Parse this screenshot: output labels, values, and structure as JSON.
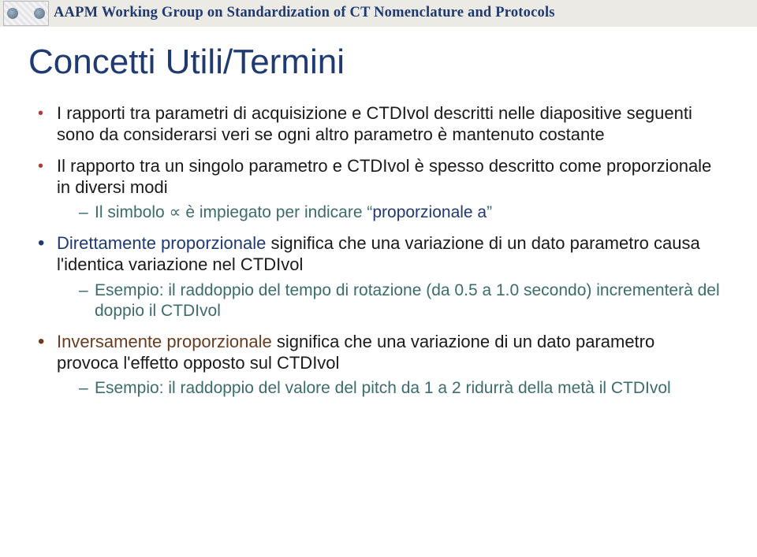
{
  "banner": {
    "title": "AAPM Working Group on Standardization of CT Nomenclature and Protocols"
  },
  "slide": {
    "title": "Concetti Utili/Termini"
  },
  "bullets": {
    "b1": "I rapporti tra parametri di acquisizione e CTDIvol  descritti nelle diapositive seguenti sono da considerarsi veri se ogni altro parametro è mantenuto costante",
    "b2": "Il rapporto tra un singolo parametro e CTDIvol  è spesso descritto come proporzionale in diversi modi",
    "b2s1_a": "Il simbolo ",
    "b2s1_sym": "∝",
    "b2s1_b": " è impiegato per indicare “",
    "b2s1_c": "proporzionale a",
    "b2s1_d": "”",
    "b3_a": "Direttamente proporzionale",
    "b3_b": " significa che una variazione di un dato parametro causa l'identica variazione nel CTDIvol",
    "b3s1": "Esempio: il raddoppio del tempo di rotazione (da 0.5 a 1.0 secondo) incrementerà del doppio il CTDIvol",
    "b4_a": "Inversamente proporzionale",
    "b4_b": " significa che una variazione di un dato parametro provoca l'effetto opposto sul  CTDIvol",
    "b4s1": "Esempio: il raddoppio del valore del pitch da 1 a 2 ridurrà della metà il CTDIvol"
  }
}
